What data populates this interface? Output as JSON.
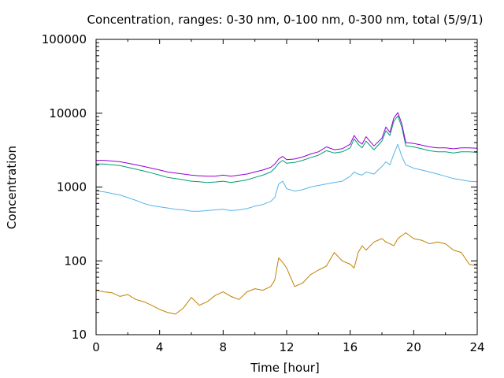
{
  "chart_data": {
    "type": "line",
    "title": "Concentration, ranges: 0-30 nm, 0-100 nm, 0-300 nm, total (5/9/1)",
    "xlabel": "Time [hour]",
    "ylabel": "Concentration",
    "xlim": [
      0,
      24
    ],
    "ylim": [
      10,
      100000
    ],
    "yscale": "log",
    "grid": false,
    "legend": "none",
    "x_ticks": [
      "0",
      "4",
      "8",
      "12",
      "16",
      "20",
      "24"
    ],
    "x_tick_values": [
      0,
      4,
      8,
      12,
      16,
      20,
      24
    ],
    "y_ticks": [
      "10",
      "100",
      "1000",
      "10000",
      "100000"
    ],
    "y_tick_values": [
      10,
      100,
      1000,
      10000,
      100000
    ],
    "x": [
      0,
      0.5,
      1,
      1.5,
      2,
      2.5,
      3,
      3.5,
      4,
      4.5,
      5,
      5.5,
      6,
      6.5,
      7,
      7.5,
      8,
      8.5,
      9,
      9.5,
      10,
      10.5,
      11,
      11.25,
      11.5,
      11.75,
      12,
      12.5,
      13,
      13.5,
      14,
      14.5,
      15,
      15.5,
      16,
      16.25,
      16.5,
      16.75,
      17,
      17.5,
      18,
      18.25,
      18.5,
      18.75,
      19,
      19.25,
      19.5,
      20,
      20.5,
      21,
      21.5,
      22,
      22.5,
      23,
      23.5,
      24
    ],
    "series": [
      {
        "color": "#c07f00",
        "values": [
          40,
          38,
          37,
          33,
          35,
          30,
          28,
          25,
          22,
          20,
          19,
          23,
          32,
          25,
          28,
          34,
          38,
          33,
          30,
          38,
          42,
          40,
          45,
          55,
          110,
          95,
          80,
          45,
          50,
          65,
          75,
          85,
          130,
          100,
          90,
          80,
          130,
          160,
          140,
          180,
          200,
          180,
          170,
          160,
          200,
          220,
          240,
          200,
          190,
          170,
          180,
          170,
          140,
          130,
          90,
          85
        ]
      },
      {
        "color": "#56b4e9",
        "values": [
          880,
          860,
          820,
          780,
          720,
          660,
          600,
          560,
          540,
          520,
          500,
          490,
          470,
          470,
          480,
          490,
          500,
          480,
          490,
          510,
          550,
          580,
          640,
          720,
          1100,
          1200,
          950,
          880,
          920,
          1000,
          1050,
          1100,
          1150,
          1200,
          1400,
          1600,
          1500,
          1450,
          1600,
          1500,
          1900,
          2200,
          2000,
          2800,
          3800,
          2600,
          2000,
          1800,
          1700,
          1600,
          1500,
          1400,
          1300,
          1250,
          1200,
          1180
        ]
      },
      {
        "color": "#009e73",
        "values": [
          2050,
          2050,
          2000,
          1950,
          1850,
          1750,
          1650,
          1550,
          1450,
          1350,
          1300,
          1250,
          1200,
          1180,
          1150,
          1170,
          1200,
          1150,
          1200,
          1250,
          1350,
          1450,
          1600,
          1800,
          2100,
          2300,
          2100,
          2150,
          2300,
          2500,
          2700,
          3100,
          2900,
          3000,
          3400,
          4500,
          3800,
          3400,
          4200,
          3200,
          4200,
          5800,
          5000,
          7800,
          9200,
          6500,
          3600,
          3500,
          3300,
          3100,
          3000,
          3000,
          2900,
          3000,
          3000,
          2950
        ]
      },
      {
        "color": "#9400d3",
        "values": [
          2300,
          2300,
          2250,
          2200,
          2100,
          2000,
          1900,
          1800,
          1700,
          1600,
          1550,
          1500,
          1450,
          1420,
          1400,
          1400,
          1450,
          1400,
          1450,
          1500,
          1600,
          1700,
          1850,
          2050,
          2400,
          2600,
          2350,
          2400,
          2550,
          2800,
          3000,
          3500,
          3200,
          3300,
          3800,
          5000,
          4200,
          3800,
          4800,
          3600,
          4600,
          6500,
          5500,
          8600,
          10200,
          7200,
          4000,
          3900,
          3700,
          3500,
          3400,
          3400,
          3300,
          3400,
          3400,
          3350
        ]
      }
    ]
  }
}
